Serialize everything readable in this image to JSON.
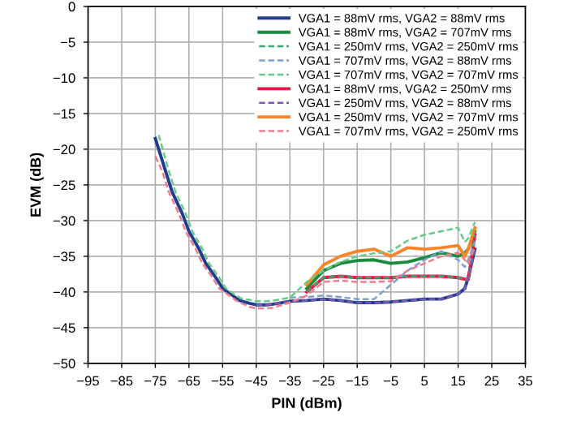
{
  "chart_data": {
    "type": "line",
    "xlabel": "PIN (dBm)",
    "ylabel": "EVM (dB)",
    "xlim": [
      -95,
      35
    ],
    "xticks": [
      -95,
      -85,
      -75,
      -65,
      -55,
      -45,
      -35,
      -25,
      -15,
      -5,
      5,
      15,
      25,
      35
    ],
    "ylim": [
      -50,
      0
    ],
    "yticks": [
      -50,
      -45,
      -40,
      -35,
      -30,
      -25,
      -20,
      -15,
      -10,
      -5,
      0
    ],
    "grid": true,
    "legend": "top right",
    "marker": "none",
    "series": [
      {
        "name": "VGA1 = 88mV rms, VGA2 = 88mV rms",
        "color": "#1f3d8c",
        "line_style": "solid",
        "x": [
          -75,
          -72,
          -70,
          -67,
          -65,
          -62,
          -60,
          -57,
          -55,
          -52,
          -50,
          -47,
          -45,
          -42,
          -40,
          -35,
          -30,
          -25,
          -20,
          -15,
          -10,
          -5,
          0,
          5,
          10,
          15,
          17,
          18,
          20
        ],
        "values": [
          -18.5,
          -23,
          -26,
          -29,
          -31.5,
          -34,
          -36,
          -38,
          -39.5,
          -40.5,
          -41.2,
          -41.6,
          -41.8,
          -41.8,
          -41.7,
          -41.3,
          -41.2,
          -41,
          -41.2,
          -41.5,
          -41.5,
          -41.4,
          -41.2,
          -41,
          -41,
          -40.3,
          -39.5,
          -38,
          -34
        ]
      },
      {
        "name": "VGA1 = 88mV rms, VGA2 = 707mV rms",
        "color": "#1a8a3c",
        "line_style": "solid",
        "x": [
          -30,
          -25,
          -20,
          -15,
          -10,
          -5,
          0,
          5,
          10,
          15,
          17,
          18,
          20
        ],
        "values": [
          -39.5,
          -37,
          -36,
          -35.6,
          -35.5,
          -36,
          -35.8,
          -35.2,
          -34.5,
          -35,
          -34.5,
          -34,
          -31.5
        ]
      },
      {
        "name": "VGA1 = 250mV rms, VGA2 = 250mV rms",
        "color": "#3aa66a",
        "line_style": "dashed",
        "x": [
          -30,
          -25,
          -20,
          -15,
          -10,
          -5,
          0,
          5,
          10,
          15,
          17,
          18,
          20
        ],
        "values": [
          -40,
          -38,
          -37.8,
          -38,
          -38,
          -38,
          -37.8,
          -37.8,
          -37.8,
          -38,
          -38.2,
          -38.3,
          -32
        ]
      },
      {
        "name": "VGA1 = 707mV rms, VGA2 = 88mV rms",
        "color": "#7f9fd0",
        "line_style": "dashed",
        "x": [
          -35,
          -30,
          -25,
          -20,
          -15,
          -10,
          -5,
          0,
          5,
          10,
          15,
          17,
          18,
          20
        ],
        "values": [
          -40.8,
          -40.7,
          -40.5,
          -40.7,
          -41,
          -41,
          -39,
          -37,
          -35.5,
          -34.3,
          -35.5,
          -36.5,
          -35.5,
          -33
        ]
      },
      {
        "name": "VGA1 = 707mV rms, VGA2 = 707mV rms",
        "color": "#66cc88",
        "line_style": "dashed",
        "x": [
          -74,
          -71,
          -69,
          -66,
          -64,
          -61,
          -59,
          -56,
          -54,
          -51,
          -49,
          -47,
          -45,
          -42,
          -40,
          -35,
          -30,
          -25,
          -20,
          -15,
          -10,
          -5,
          0,
          5,
          10,
          15,
          17,
          18,
          20
        ],
        "values": [
          -18,
          -23,
          -26,
          -29,
          -31.5,
          -34,
          -36,
          -38,
          -39.5,
          -40.5,
          -41,
          -41.1,
          -41.3,
          -41.3,
          -41.2,
          -40.8,
          -38.6,
          -37,
          -35.8,
          -35,
          -34.6,
          -34.3,
          -32.8,
          -32,
          -31.5,
          -31,
          -33,
          -32.5,
          -30.2
        ]
      },
      {
        "name": "VGA1 = 88mV rms, VGA2 = 250mV rms",
        "color": "#e8174a",
        "line_style": "solid",
        "x": [
          -30,
          -25,
          -20,
          -15,
          -10,
          -5,
          0,
          5,
          10,
          15,
          17,
          18,
          20
        ],
        "values": [
          -40,
          -38,
          -37.8,
          -38,
          -38,
          -38,
          -37.8,
          -37.8,
          -37.8,
          -38,
          -38.2,
          -38.3,
          -32
        ]
      },
      {
        "name": "VGA1 = 250mV rms, VGA2 = 88mV rms",
        "color": "#7a5cb0",
        "line_style": "dashed",
        "x": [
          -45,
          -42,
          -40,
          -35,
          -30,
          -25,
          -20,
          -15,
          -10,
          -5,
          0,
          5,
          10,
          15,
          17,
          18,
          20
        ],
        "values": [
          -41.8,
          -41.8,
          -41.7,
          -41.3,
          -41.2,
          -41,
          -41.2,
          -41.5,
          -41.5,
          -41.4,
          -41.2,
          -41,
          -41,
          -40.3,
          -39.5,
          -38,
          -34
        ]
      },
      {
        "name": "VGA1 = 250mV rms, VGA2 = 707mV rms",
        "color": "#f7862b",
        "line_style": "solid",
        "x": [
          -30,
          -25,
          -20,
          -15,
          -10,
          -5,
          0,
          5,
          10,
          15,
          17,
          18,
          20
        ],
        "values": [
          -39,
          -36.2,
          -35,
          -34.3,
          -34,
          -35,
          -33.8,
          -34,
          -33.8,
          -33.5,
          -35,
          -34,
          -31
        ]
      },
      {
        "name": "VGA1 = 707mV rms, VGA2 = 250mV rms",
        "color": "#ee7d8e",
        "line_style": "dashed",
        "x": [
          -75,
          -73,
          -71,
          -68,
          -66,
          -63,
          -61,
          -58,
          -56,
          -53,
          -51,
          -47,
          -45,
          -42,
          -40,
          -35,
          -30,
          -25,
          -20,
          -15,
          -10,
          -5,
          0,
          5,
          10,
          15,
          17,
          18,
          20
        ],
        "values": [
          -21,
          -23,
          -26,
          -29,
          -31.5,
          -34,
          -36,
          -38,
          -39.5,
          -40.5,
          -41.2,
          -42.1,
          -42.3,
          -42.3,
          -42.2,
          -41.5,
          -40.5,
          -38.6,
          -38.4,
          -38.6,
          -38.6,
          -38.5,
          -37,
          -36,
          -35,
          -34.5,
          -35.5,
          -36,
          -33.6
        ]
      }
    ]
  }
}
